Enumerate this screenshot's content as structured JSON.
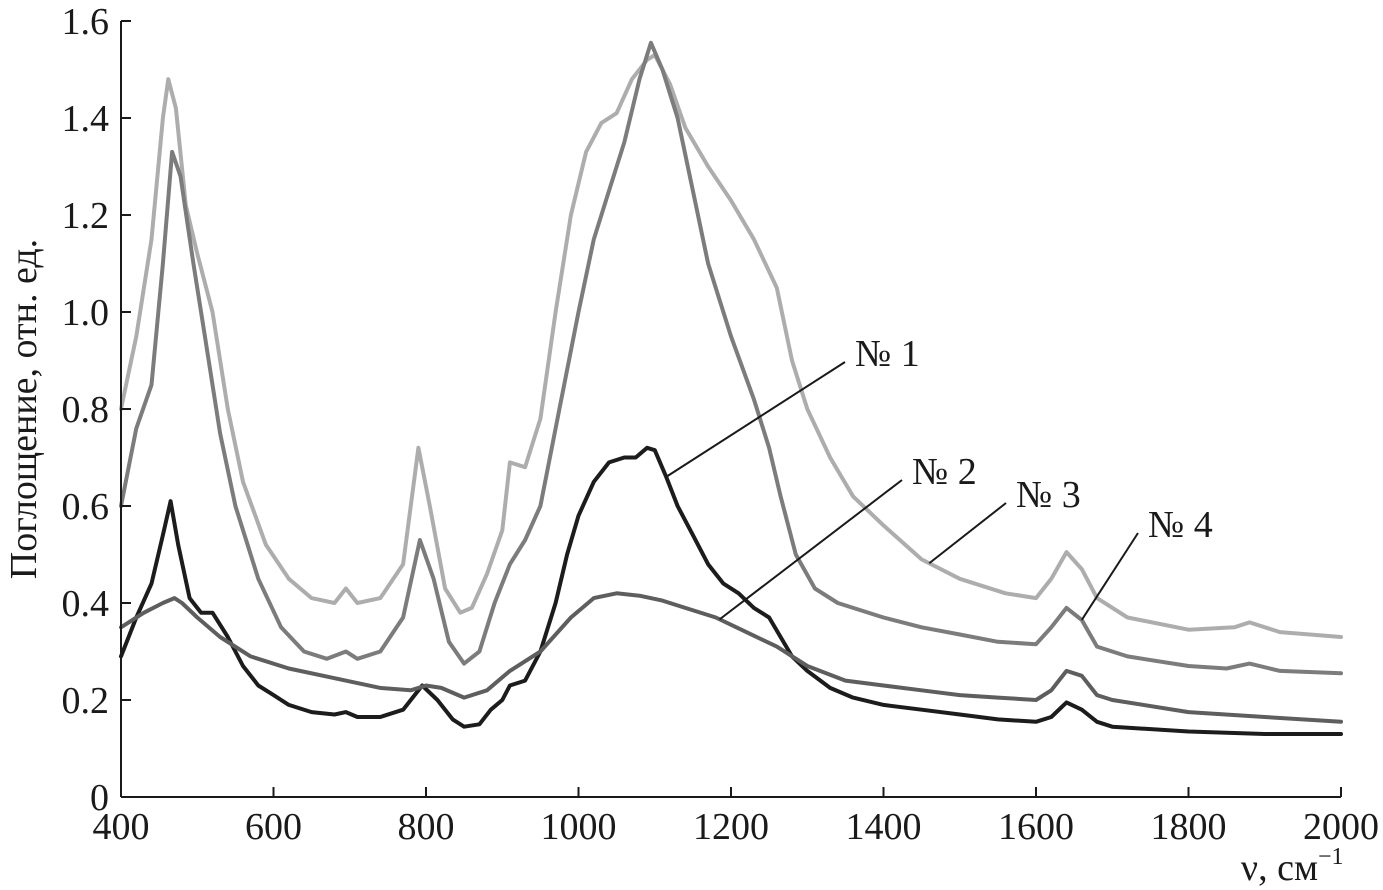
{
  "chart_data": {
    "type": "line",
    "title": "",
    "xlabel": "ν, см",
    "xlabel_sup": "−1",
    "ylabel": "Поглощение, отн. ед.",
    "xlim": [
      400,
      2000
    ],
    "ylim": [
      0,
      1.6
    ],
    "x_ticks": [
      "400",
      "600",
      "800",
      "1000",
      "1200",
      "1400",
      "1600",
      "1800",
      "2000"
    ],
    "y_ticks": [
      "0",
      "0.2",
      "0.4",
      "0.6",
      "0.8",
      "1.0",
      "1.2",
      "1.4",
      "1.6"
    ],
    "grid": false,
    "series": [
      {
        "name": "№ 1",
        "color": "#1c1c1c",
        "points": [
          [
            400,
            0.29
          ],
          [
            420,
            0.37
          ],
          [
            440,
            0.44
          ],
          [
            455,
            0.54
          ],
          [
            465,
            0.61
          ],
          [
            475,
            0.52
          ],
          [
            490,
            0.41
          ],
          [
            505,
            0.38
          ],
          [
            520,
            0.38
          ],
          [
            540,
            0.33
          ],
          [
            560,
            0.27
          ],
          [
            580,
            0.23
          ],
          [
            600,
            0.21
          ],
          [
            620,
            0.19
          ],
          [
            650,
            0.175
          ],
          [
            680,
            0.17
          ],
          [
            695,
            0.175
          ],
          [
            710,
            0.165
          ],
          [
            740,
            0.165
          ],
          [
            770,
            0.18
          ],
          [
            795,
            0.23
          ],
          [
            815,
            0.2
          ],
          [
            835,
            0.16
          ],
          [
            850,
            0.145
          ],
          [
            870,
            0.15
          ],
          [
            885,
            0.18
          ],
          [
            900,
            0.2
          ],
          [
            910,
            0.23
          ],
          [
            930,
            0.24
          ],
          [
            950,
            0.3
          ],
          [
            970,
            0.4
          ],
          [
            985,
            0.5
          ],
          [
            1000,
            0.58
          ],
          [
            1020,
            0.65
          ],
          [
            1040,
            0.69
          ],
          [
            1060,
            0.7
          ],
          [
            1075,
            0.7
          ],
          [
            1090,
            0.72
          ],
          [
            1100,
            0.715
          ],
          [
            1115,
            0.66
          ],
          [
            1130,
            0.6
          ],
          [
            1150,
            0.54
          ],
          [
            1170,
            0.48
          ],
          [
            1190,
            0.44
          ],
          [
            1210,
            0.42
          ],
          [
            1230,
            0.39
          ],
          [
            1250,
            0.37
          ],
          [
            1265,
            0.33
          ],
          [
            1280,
            0.29
          ],
          [
            1300,
            0.26
          ],
          [
            1330,
            0.225
          ],
          [
            1360,
            0.205
          ],
          [
            1400,
            0.19
          ],
          [
            1450,
            0.18
          ],
          [
            1500,
            0.17
          ],
          [
            1550,
            0.16
          ],
          [
            1600,
            0.155
          ],
          [
            1620,
            0.165
          ],
          [
            1640,
            0.195
          ],
          [
            1660,
            0.18
          ],
          [
            1680,
            0.155
          ],
          [
            1700,
            0.145
          ],
          [
            1800,
            0.135
          ],
          [
            1900,
            0.13
          ],
          [
            2000,
            0.13
          ]
        ]
      },
      {
        "name": "№ 2",
        "color": "#5e5e5e",
        "points": [
          [
            400,
            0.35
          ],
          [
            430,
            0.38
          ],
          [
            455,
            0.4
          ],
          [
            470,
            0.41
          ],
          [
            480,
            0.4
          ],
          [
            500,
            0.37
          ],
          [
            530,
            0.33
          ],
          [
            570,
            0.29
          ],
          [
            620,
            0.265
          ],
          [
            680,
            0.245
          ],
          [
            740,
            0.225
          ],
          [
            780,
            0.22
          ],
          [
            800,
            0.23
          ],
          [
            820,
            0.225
          ],
          [
            850,
            0.205
          ],
          [
            880,
            0.22
          ],
          [
            910,
            0.26
          ],
          [
            950,
            0.3
          ],
          [
            990,
            0.37
          ],
          [
            1020,
            0.41
          ],
          [
            1050,
            0.42
          ],
          [
            1080,
            0.415
          ],
          [
            1110,
            0.405
          ],
          [
            1140,
            0.39
          ],
          [
            1180,
            0.37
          ],
          [
            1220,
            0.34
          ],
          [
            1260,
            0.31
          ],
          [
            1300,
            0.27
          ],
          [
            1350,
            0.24
          ],
          [
            1400,
            0.23
          ],
          [
            1450,
            0.22
          ],
          [
            1500,
            0.21
          ],
          [
            1550,
            0.205
          ],
          [
            1600,
            0.2
          ],
          [
            1620,
            0.22
          ],
          [
            1640,
            0.26
          ],
          [
            1660,
            0.25
          ],
          [
            1680,
            0.21
          ],
          [
            1700,
            0.2
          ],
          [
            1800,
            0.175
          ],
          [
            1900,
            0.165
          ],
          [
            2000,
            0.155
          ]
        ]
      },
      {
        "name": "№ 3",
        "color": "#adadad",
        "points": [
          [
            400,
            0.8
          ],
          [
            420,
            0.95
          ],
          [
            440,
            1.15
          ],
          [
            455,
            1.4
          ],
          [
            462,
            1.48
          ],
          [
            472,
            1.42
          ],
          [
            485,
            1.22
          ],
          [
            500,
            1.12
          ],
          [
            520,
            1.0
          ],
          [
            540,
            0.8
          ],
          [
            560,
            0.65
          ],
          [
            590,
            0.52
          ],
          [
            620,
            0.45
          ],
          [
            650,
            0.41
          ],
          [
            680,
            0.4
          ],
          [
            695,
            0.43
          ],
          [
            710,
            0.4
          ],
          [
            740,
            0.41
          ],
          [
            770,
            0.48
          ],
          [
            790,
            0.72
          ],
          [
            805,
            0.6
          ],
          [
            825,
            0.43
          ],
          [
            845,
            0.38
          ],
          [
            860,
            0.39
          ],
          [
            880,
            0.46
          ],
          [
            900,
            0.55
          ],
          [
            910,
            0.69
          ],
          [
            930,
            0.68
          ],
          [
            950,
            0.78
          ],
          [
            970,
            1.0
          ],
          [
            990,
            1.2
          ],
          [
            1010,
            1.33
          ],
          [
            1030,
            1.39
          ],
          [
            1050,
            1.41
          ],
          [
            1070,
            1.48
          ],
          [
            1090,
            1.52
          ],
          [
            1100,
            1.53
          ],
          [
            1120,
            1.47
          ],
          [
            1140,
            1.38
          ],
          [
            1170,
            1.3
          ],
          [
            1200,
            1.23
          ],
          [
            1230,
            1.15
          ],
          [
            1260,
            1.05
          ],
          [
            1280,
            0.9
          ],
          [
            1300,
            0.8
          ],
          [
            1330,
            0.7
          ],
          [
            1360,
            0.62
          ],
          [
            1400,
            0.56
          ],
          [
            1450,
            0.49
          ],
          [
            1500,
            0.45
          ],
          [
            1560,
            0.42
          ],
          [
            1600,
            0.41
          ],
          [
            1620,
            0.45
          ],
          [
            1640,
            0.505
          ],
          [
            1660,
            0.47
          ],
          [
            1680,
            0.41
          ],
          [
            1720,
            0.37
          ],
          [
            1800,
            0.345
          ],
          [
            1860,
            0.35
          ],
          [
            1880,
            0.36
          ],
          [
            1920,
            0.34
          ],
          [
            2000,
            0.33
          ]
        ]
      },
      {
        "name": "№ 4",
        "color": "#7c7c7c",
        "points": [
          [
            400,
            0.6
          ],
          [
            420,
            0.76
          ],
          [
            440,
            0.85
          ],
          [
            455,
            1.1
          ],
          [
            467,
            1.33
          ],
          [
            478,
            1.28
          ],
          [
            495,
            1.1
          ],
          [
            510,
            0.95
          ],
          [
            530,
            0.75
          ],
          [
            550,
            0.6
          ],
          [
            580,
            0.45
          ],
          [
            610,
            0.35
          ],
          [
            640,
            0.3
          ],
          [
            670,
            0.285
          ],
          [
            695,
            0.3
          ],
          [
            710,
            0.285
          ],
          [
            740,
            0.3
          ],
          [
            770,
            0.37
          ],
          [
            792,
            0.53
          ],
          [
            810,
            0.45
          ],
          [
            830,
            0.32
          ],
          [
            850,
            0.275
          ],
          [
            870,
            0.3
          ],
          [
            890,
            0.4
          ],
          [
            910,
            0.48
          ],
          [
            930,
            0.53
          ],
          [
            950,
            0.6
          ],
          [
            975,
            0.8
          ],
          [
            1000,
            1.0
          ],
          [
            1020,
            1.15
          ],
          [
            1040,
            1.25
          ],
          [
            1060,
            1.35
          ],
          [
            1080,
            1.48
          ],
          [
            1095,
            1.555
          ],
          [
            1110,
            1.5
          ],
          [
            1130,
            1.4
          ],
          [
            1150,
            1.25
          ],
          [
            1170,
            1.1
          ],
          [
            1200,
            0.95
          ],
          [
            1230,
            0.82
          ],
          [
            1250,
            0.72
          ],
          [
            1265,
            0.62
          ],
          [
            1285,
            0.5
          ],
          [
            1310,
            0.43
          ],
          [
            1340,
            0.4
          ],
          [
            1400,
            0.37
          ],
          [
            1450,
            0.35
          ],
          [
            1500,
            0.335
          ],
          [
            1550,
            0.32
          ],
          [
            1600,
            0.315
          ],
          [
            1620,
            0.35
          ],
          [
            1640,
            0.39
          ],
          [
            1660,
            0.365
          ],
          [
            1680,
            0.31
          ],
          [
            1720,
            0.29
          ],
          [
            1800,
            0.27
          ],
          [
            1850,
            0.265
          ],
          [
            1880,
            0.275
          ],
          [
            1920,
            0.26
          ],
          [
            2000,
            0.255
          ]
        ]
      }
    ],
    "annotations": [
      {
        "label": "№ 1",
        "series": 0,
        "at_x": 1115
      },
      {
        "label": "№ 2",
        "series": 1,
        "at_x": 1185
      },
      {
        "label": "№ 3",
        "series": 2,
        "at_x": 1460
      },
      {
        "label": "№ 4",
        "series": 3,
        "at_x": 1660
      }
    ]
  }
}
